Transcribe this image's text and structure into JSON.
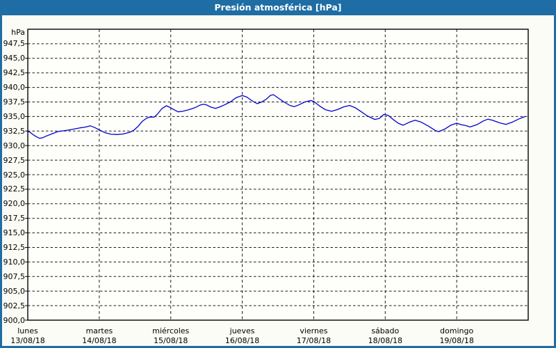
{
  "window": {
    "title": "Presión atmosférica [hPa]"
  },
  "colors": {
    "titlebar_and_frame": "#1E6DA4",
    "content_bg": "#FBFCF5",
    "plot_bg": "#FEFEFB",
    "plot_border": "#000000",
    "grid": "#1a1a1a",
    "line": "#0000CD",
    "axis_text": "#000000",
    "title_text": "#FFFFFF"
  },
  "chart_data": {
    "type": "line",
    "title": "Presión atmosférica [hPa]",
    "ylabel_unit": "hPa",
    "ylim": [
      900,
      950
    ],
    "ytick_step": 2.5,
    "y_tick_labels": [
      "947,5",
      "945,0",
      "942,5",
      "940,0",
      "937,5",
      "935,0",
      "932,5",
      "930,0",
      "927,5",
      "925,0",
      "922,5",
      "920,0",
      "917,5",
      "915,0",
      "912,5",
      "910,0",
      "907,5",
      "905,0",
      "902,5",
      "900,0"
    ],
    "xlim_hours": [
      0,
      168
    ],
    "x_day_tick_hours": [
      0,
      24,
      48,
      72,
      96,
      120,
      144
    ],
    "days": [
      {
        "name": "lunes",
        "date": "13/08/18"
      },
      {
        "name": "martes",
        "date": "14/08/18"
      },
      {
        "name": "miércoles",
        "date": "15/08/18"
      },
      {
        "name": "jueves",
        "date": "16/08/18"
      },
      {
        "name": "viernes",
        "date": "17/08/18"
      },
      {
        "name": "sábado",
        "date": "18/08/18"
      },
      {
        "name": "domingo",
        "date": "19/08/18"
      }
    ],
    "grid": "dashed",
    "legend": "none",
    "series": [
      {
        "color": "#0000CD",
        "x_unit": "hours from lunes 13/08/18 00:00",
        "y_unit": "hPa",
        "points": [
          [
            0,
            932.5
          ],
          [
            1,
            932.2
          ],
          [
            2,
            931.8
          ],
          [
            3,
            931.5
          ],
          [
            4,
            931.25
          ],
          [
            5,
            931.35
          ],
          [
            6,
            931.6
          ],
          [
            8,
            932.0
          ],
          [
            10,
            932.4
          ],
          [
            12,
            932.55
          ],
          [
            14,
            932.7
          ],
          [
            16,
            932.9
          ],
          [
            17.5,
            933.05
          ],
          [
            19,
            933.15
          ],
          [
            21,
            933.4
          ],
          [
            22.5,
            933.1
          ],
          [
            24,
            932.7
          ],
          [
            26,
            932.2
          ],
          [
            28,
            931.95
          ],
          [
            30,
            931.9
          ],
          [
            32,
            932.0
          ],
          [
            34,
            932.25
          ],
          [
            35.5,
            932.6
          ],
          [
            37,
            933.3
          ],
          [
            38.5,
            934.2
          ],
          [
            40,
            934.75
          ],
          [
            41,
            934.9
          ],
          [
            42.5,
            934.9
          ],
          [
            43.5,
            935.4
          ],
          [
            45,
            936.35
          ],
          [
            46.5,
            936.85
          ],
          [
            48,
            936.5
          ],
          [
            49.5,
            936.05
          ],
          [
            50.5,
            935.8
          ],
          [
            52,
            935.9
          ],
          [
            54,
            936.15
          ],
          [
            56,
            936.5
          ],
          [
            58,
            937.0
          ],
          [
            59,
            937.1
          ],
          [
            60,
            937.0
          ],
          [
            61.5,
            936.6
          ],
          [
            63,
            936.4
          ],
          [
            64.5,
            936.65
          ],
          [
            66,
            937.0
          ],
          [
            68,
            937.5
          ],
          [
            70,
            938.25
          ],
          [
            72,
            938.6
          ],
          [
            73.5,
            938.35
          ],
          [
            75,
            937.8
          ],
          [
            77,
            937.2
          ],
          [
            78.5,
            937.5
          ],
          [
            80,
            937.95
          ],
          [
            81.5,
            938.65
          ],
          [
            82.5,
            938.75
          ],
          [
            84,
            938.2
          ],
          [
            86,
            937.5
          ],
          [
            88,
            936.9
          ],
          [
            89.5,
            936.7
          ],
          [
            91,
            937.0
          ],
          [
            93,
            937.5
          ],
          [
            95,
            937.75
          ],
          [
            96,
            937.6
          ],
          [
            98,
            936.8
          ],
          [
            100,
            936.15
          ],
          [
            102,
            935.9
          ],
          [
            104,
            936.2
          ],
          [
            106,
            936.65
          ],
          [
            108,
            936.9
          ],
          [
            110,
            936.5
          ],
          [
            112,
            935.8
          ],
          [
            114,
            935.1
          ],
          [
            116.5,
            934.5
          ],
          [
            118,
            934.65
          ],
          [
            119.5,
            935.35
          ],
          [
            121,
            935.2
          ],
          [
            123,
            934.35
          ],
          [
            124.5,
            933.8
          ],
          [
            126,
            933.5
          ],
          [
            128,
            934.0
          ],
          [
            130,
            934.35
          ],
          [
            132,
            934.05
          ],
          [
            134.5,
            933.35
          ],
          [
            137,
            932.55
          ],
          [
            138,
            932.4
          ],
          [
            140,
            932.85
          ],
          [
            142,
            933.5
          ],
          [
            144,
            933.85
          ],
          [
            145.5,
            933.6
          ],
          [
            147,
            933.45
          ],
          [
            148.5,
            933.2
          ],
          [
            151,
            933.65
          ],
          [
            153,
            934.25
          ],
          [
            154.5,
            934.55
          ],
          [
            156,
            934.35
          ],
          [
            158.5,
            933.9
          ],
          [
            160.5,
            933.65
          ],
          [
            162.5,
            934.0
          ],
          [
            165,
            934.6
          ],
          [
            167,
            935.0
          ]
        ]
      }
    ]
  }
}
